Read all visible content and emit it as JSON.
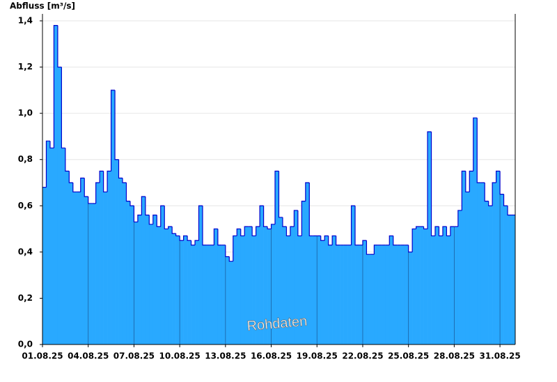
{
  "chart_data": {
    "type": "step-area",
    "y_label": "Abfluss [m³/s]",
    "annotation": "Rohdaten",
    "color": "#29a9ff",
    "line_color": "#0000cc",
    "grid": true,
    "ylim": [
      0,
      1.4
    ],
    "yticks": [
      {
        "value": 0,
        "label": "0,0"
      },
      {
        "value": 0.2,
        "label": "0,2"
      },
      {
        "value": 0.4,
        "label": "0,4"
      },
      {
        "value": 0.6,
        "label": "0,6"
      },
      {
        "value": 0.8,
        "label": "0,8"
      },
      {
        "value": 1.0,
        "label": "1,0"
      },
      {
        "value": 1.2,
        "label": "1,2"
      },
      {
        "value": 1.4,
        "label": "1,4"
      }
    ],
    "categories": [
      "01.08.25",
      null,
      null,
      null,
      null,
      null,
      null,
      null,
      null,
      null,
      null,
      null,
      "04.08.25",
      null,
      null,
      null,
      null,
      null,
      null,
      null,
      null,
      null,
      null,
      null,
      "07.08.25",
      null,
      null,
      null,
      null,
      null,
      null,
      null,
      null,
      null,
      null,
      null,
      "10.08.25",
      null,
      null,
      null,
      null,
      null,
      null,
      null,
      null,
      null,
      null,
      null,
      "13.08.25",
      null,
      null,
      null,
      null,
      null,
      null,
      null,
      null,
      null,
      null,
      null,
      "16.08.25",
      null,
      null,
      null,
      null,
      null,
      null,
      null,
      null,
      null,
      null,
      null,
      "19.08.25",
      null,
      null,
      null,
      null,
      null,
      null,
      null,
      null,
      null,
      null,
      null,
      "22.08.25",
      null,
      null,
      null,
      null,
      null,
      null,
      null,
      null,
      null,
      null,
      null,
      "25.08.25",
      null,
      null,
      null,
      null,
      null,
      null,
      null,
      null,
      null,
      null,
      null,
      "28.08.25",
      null,
      null,
      null,
      null,
      null,
      null,
      null,
      null,
      null,
      null,
      null,
      "31.08.25",
      null,
      null,
      null
    ],
    "values": [
      0.68,
      0.88,
      0.85,
      1.38,
      1.2,
      0.85,
      0.75,
      0.7,
      0.66,
      0.66,
      0.72,
      0.64,
      0.61,
      0.61,
      0.7,
      0.75,
      0.66,
      0.75,
      1.1,
      0.8,
      0.72,
      0.7,
      0.62,
      0.6,
      0.53,
      0.56,
      0.64,
      0.56,
      0.52,
      0.56,
      0.51,
      0.6,
      0.5,
      0.51,
      0.48,
      0.47,
      0.45,
      0.47,
      0.45,
      0.43,
      0.45,
      0.6,
      0.43,
      0.43,
      0.43,
      0.5,
      0.43,
      0.43,
      0.38,
      0.36,
      0.47,
      0.5,
      0.47,
      0.51,
      0.51,
      0.47,
      0.51,
      0.6,
      0.51,
      0.5,
      0.52,
      0.75,
      0.55,
      0.51,
      0.47,
      0.51,
      0.58,
      0.47,
      0.62,
      0.7,
      0.47,
      0.47,
      0.47,
      0.45,
      0.47,
      0.43,
      0.47,
      0.43,
      0.43,
      0.43,
      0.43,
      0.6,
      0.43,
      0.43,
      0.45,
      0.39,
      0.39,
      0.43,
      0.43,
      0.43,
      0.43,
      0.47,
      0.43,
      0.43,
      0.43,
      0.43,
      0.4,
      0.5,
      0.51,
      0.51,
      0.5,
      0.92,
      0.47,
      0.51,
      0.47,
      0.51,
      0.47,
      0.51,
      0.51,
      0.58,
      0.75,
      0.66,
      0.75,
      0.98,
      0.7,
      0.7,
      0.62,
      0.6,
      0.7,
      0.75,
      0.65,
      0.6,
      0.56,
      0.56
    ]
  }
}
